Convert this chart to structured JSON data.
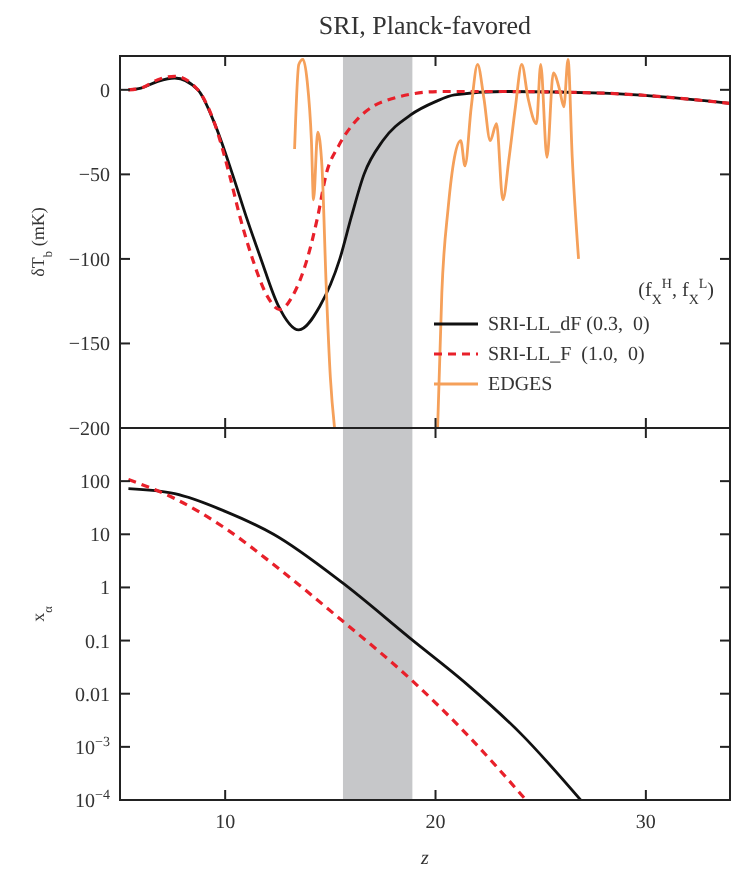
{
  "chart_data": [
    {
      "type": "line",
      "title": "SRI, Planck-favored",
      "ylabel": "δT$_{b}$ (mK)",
      "legend_title": "(f$_{X}$$^{H}$, f$_{X}$$^{L}$)",
      "legend": "bottom right",
      "tick_labels": "y",
      "xlim": [
        5,
        34
      ],
      "xticks": [
        10,
        20,
        30
      ],
      "ylim": [
        -200,
        20
      ],
      "yticks": [
        0,
        -50,
        -100,
        -150,
        -200
      ],
      "bands": [
        {
          "axis": "x",
          "from": 15.6,
          "to": 18.9,
          "color": "#c6c7c9"
        }
      ],
      "series": [
        {
          "name": "SRI-LL_dF (0.3,  0)",
          "color": "#111111",
          "line_style": "solid",
          "x": [
            5.4,
            6,
            6.8,
            7.6,
            8.7,
            9.5,
            10.35,
            11,
            11.7,
            12.5,
            13.5,
            14.5,
            15.45,
            16,
            16.6,
            17.5,
            18.8,
            20,
            20.9,
            23.2,
            28,
            34
          ],
          "values": [
            0,
            1,
            5,
            7,
            0,
            -20,
            -50,
            -75,
            -100,
            -127,
            -142,
            -128,
            -100,
            -75,
            -50,
            -30,
            -15,
            -7,
            -3,
            -1,
            -2,
            -8
          ]
        },
        {
          "name": "SRI-LL_F  (1.0,  0)",
          "color": "#e8202a",
          "line_style": "dashed",
          "x": [
            5.4,
            6,
            6.8,
            7.6,
            8.7,
            9.5,
            10.2,
            10.7,
            11.3,
            12,
            12.6,
            13.2,
            13.9,
            14.4,
            14.8,
            15.4,
            16.1,
            17,
            18,
            20.2,
            23,
            28,
            34
          ],
          "values": [
            0,
            1,
            6,
            8,
            0,
            -20,
            -50,
            -75,
            -100,
            -122,
            -130,
            -122,
            -100,
            -75,
            -50,
            -33,
            -20,
            -10,
            -5,
            -1,
            -1,
            -2,
            -8
          ]
        },
        {
          "name": "EDGES",
          "color": "#f5a05a",
          "line_style": "solid",
          "x": [
            13.3,
            13.5,
            13.7,
            13.9,
            14.1,
            14.2,
            14.4,
            14.6,
            14.8,
            15.0,
            15.2,
            19.9,
            20.1,
            20.3,
            20.6,
            20.9,
            21.2,
            21.4,
            21.7,
            22.0,
            22.3,
            22.6,
            22.9,
            23.2,
            23.5,
            23.8,
            24.1,
            24.4,
            24.8,
            25.0,
            25.3,
            25.6,
            25.9,
            26.1,
            26.3,
            26.5,
            26.8
          ],
          "values": [
            -35,
            15,
            18,
            5,
            -30,
            -65,
            -25,
            -45,
            -115,
            -170,
            -200,
            null,
            -200,
            -120,
            -70,
            -40,
            -30,
            -45,
            -10,
            15,
            -5,
            -30,
            -20,
            -65,
            -40,
            -10,
            15,
            -5,
            -20,
            15,
            -40,
            10,
            0,
            -10,
            18,
            -40,
            -100
          ]
        }
      ]
    },
    {
      "type": "line",
      "xlabel": "z",
      "ylabel": "x$_{α}$",
      "log": "y",
      "legend": false,
      "xlim": [
        5,
        34
      ],
      "xticks": [
        10,
        20,
        30
      ],
      "ylim": [
        0.0001,
        1000
      ],
      "yticks": [
        {
          "value": 0.0001,
          "label": "10$^{−4}$"
        },
        {
          "value": 0.001,
          "label": "10$^{−3}$"
        },
        0.01,
        0.1,
        1,
        10,
        100
      ],
      "bands": [
        {
          "axis": "x",
          "from": 15.6,
          "to": 18.9,
          "color": "#c6c7c9"
        }
      ],
      "series": [
        {
          "color": "#111111",
          "line_style": "solid",
          "x": [
            5.4,
            7.6,
            10,
            12.3,
            15.6,
            18.8,
            21.5,
            24.1,
            26.9
          ],
          "values": [
            72,
            58,
            27,
            10,
            1.2,
            0.11,
            0.015,
            0.0017,
            0.0001
          ]
        },
        {
          "color": "#e8202a",
          "line_style": "dashed",
          "x": [
            5.4,
            7.6,
            10,
            12.3,
            15.6,
            18.8,
            21.5,
            24.3
          ],
          "values": [
            107,
            47,
            13,
            2.7,
            0.23,
            0.019,
            0.0017,
            0.0001
          ]
        }
      ]
    }
  ]
}
